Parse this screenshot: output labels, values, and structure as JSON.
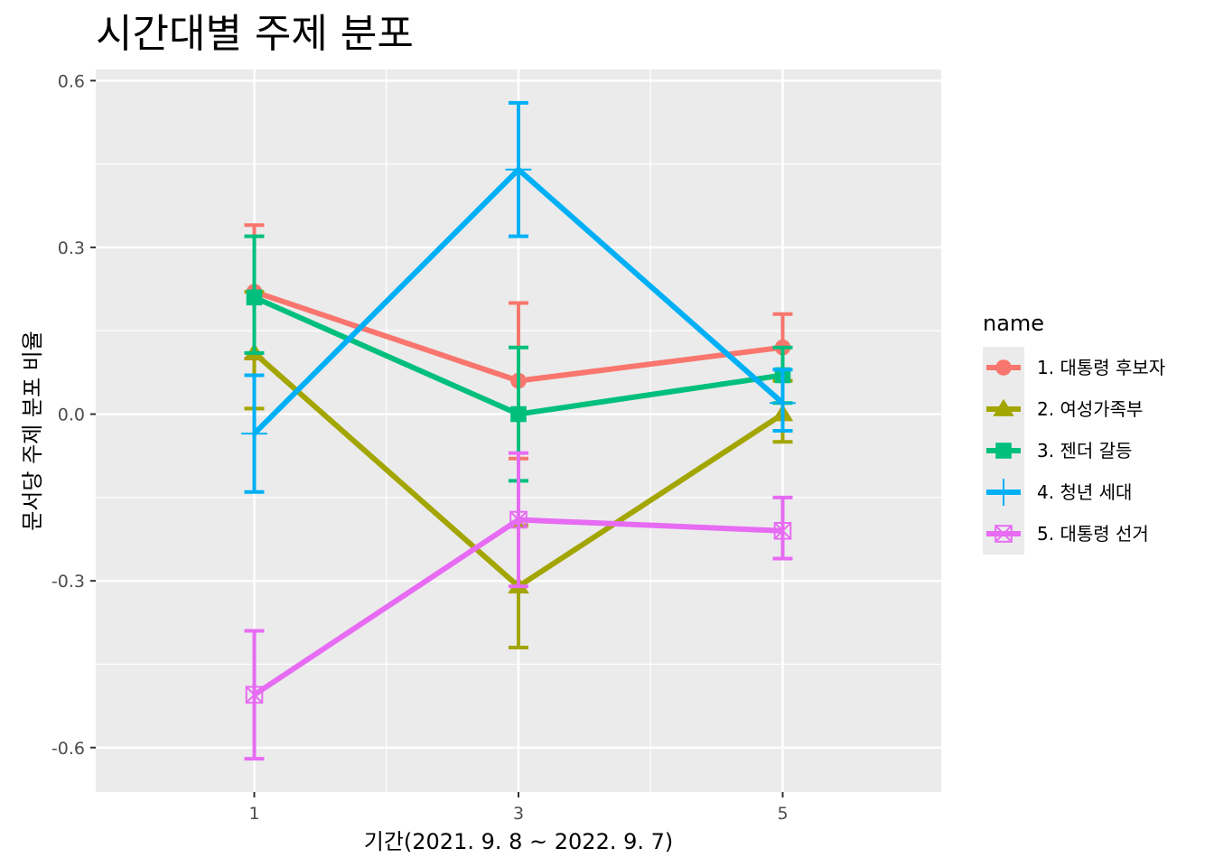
{
  "chart_data": {
    "type": "line",
    "title": "시간대별 주제 분포",
    "xlabel": "기간(2021. 9. 8 ~ 2022. 9. 7)",
    "ylabel": "문서당 주제 분포 비율",
    "x": [
      1,
      3,
      5
    ],
    "x_ticks": [
      "1",
      "3",
      "5"
    ],
    "y_ticks": [
      "0.6",
      "0.3",
      "0.0",
      "-0.3",
      "-0.6"
    ],
    "y_tick_values": [
      0.6,
      0.3,
      0.0,
      -0.3,
      -0.6
    ],
    "xlim": [
      -0.2,
      6.2
    ],
    "ylim": [
      -0.68,
      0.62
    ],
    "grid": true,
    "legend": {
      "title": "name",
      "position": "right"
    },
    "series": [
      {
        "name": "1. 대통령 후보자",
        "color": "#F8766D",
        "shape": "circle",
        "values": [
          0.22,
          0.06,
          0.12
        ],
        "lower": [
          0.1,
          -0.08,
          0.06
        ],
        "upper": [
          0.34,
          0.2,
          0.18
        ]
      },
      {
        "name": "2. 여성가족부",
        "color": "#A3A500",
        "shape": "triangle",
        "values": [
          0.11,
          -0.31,
          0.0
        ],
        "lower": [
          0.01,
          -0.42,
          -0.05
        ],
        "upper": [
          0.22,
          -0.2,
          0.06
        ]
      },
      {
        "name": "3. 젠더 갈등",
        "color": "#00BF7D",
        "shape": "square",
        "values": [
          0.21,
          0.0,
          0.07
        ],
        "lower": [
          0.11,
          -0.12,
          0.02
        ],
        "upper": [
          0.32,
          0.12,
          0.12
        ]
      },
      {
        "name": "4. 청년 세대",
        "color": "#00B0F6",
        "shape": "plus",
        "values": [
          -0.035,
          0.44,
          0.02
        ],
        "lower": [
          -0.14,
          0.32,
          -0.03
        ],
        "upper": [
          0.07,
          0.56,
          0.08
        ]
      },
      {
        "name": "5. 대통령 선거",
        "color": "#E76BF3",
        "shape": "square-cross",
        "values": [
          -0.505,
          -0.19,
          -0.21
        ],
        "lower": [
          -0.62,
          -0.31,
          -0.26
        ],
        "upper": [
          -0.39,
          -0.07,
          -0.15
        ]
      }
    ]
  }
}
